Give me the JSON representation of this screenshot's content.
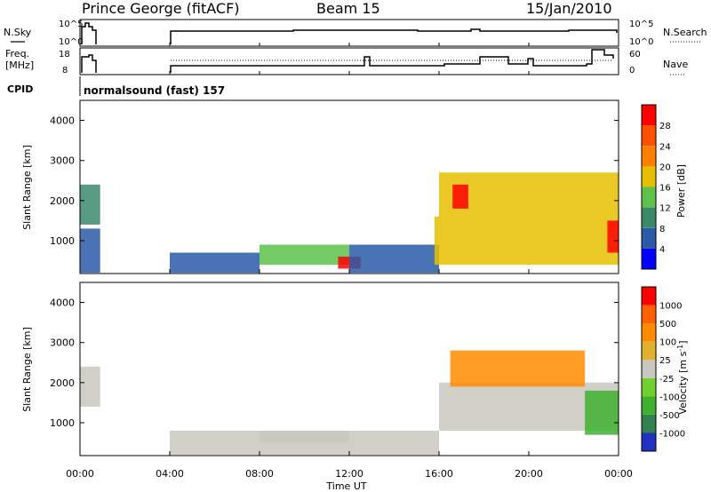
{
  "header": {
    "station": "Prince George (fitACF)",
    "beam": "Beam 15",
    "date": "15/Jan/2010"
  },
  "status_panels": {
    "nsky_label": "N.Sky",
    "nsearch_label": "N.Search",
    "freq_label_1": "Freq.",
    "freq_label_2": "[MHz]",
    "nave_label": "Nave",
    "cpid_label": "CPID",
    "cpid_text": "normalsound (fast) 157",
    "noise_ticks": [
      "10^5",
      "10^0"
    ],
    "freq_ticks": [
      "18",
      "8"
    ],
    "nave_ticks": [
      "60",
      "0"
    ]
  },
  "chart_data": [
    {
      "type": "heatmap",
      "ylabel": "Slant Range [km]",
      "yticks": [
        "4000",
        "3000",
        "2000",
        "1000"
      ],
      "ylim": [
        180,
        4500
      ],
      "colorbar": {
        "label": "Power [dB]",
        "ticks": [
          "28",
          "24",
          "20",
          "16",
          "12",
          "8",
          "4"
        ],
        "colors": [
          "#0000ff",
          "#2a5aa8",
          "#3a8a6a",
          "#5cc24a",
          "#e6c000",
          "#ff8000",
          "#ff5000",
          "#ff0000"
        ]
      },
      "regions": [
        {
          "x": [
            0.0,
            0.9
          ],
          "y": [
            1400,
            2400
          ],
          "level": 0.25
        },
        {
          "x": [
            0.0,
            0.9
          ],
          "y": [
            200,
            1300
          ],
          "level": 0.12
        },
        {
          "x": [
            4.0,
            8.0
          ],
          "y": [
            200,
            700
          ],
          "level": 0.1
        },
        {
          "x": [
            8.0,
            12.0
          ],
          "y": [
            400,
            900
          ],
          "level": 0.45
        },
        {
          "x": [
            11.5,
            12.5
          ],
          "y": [
            300,
            600
          ],
          "level": 0.95
        },
        {
          "x": [
            12.0,
            16.0
          ],
          "y": [
            200,
            900
          ],
          "level": 0.2
        },
        {
          "x": [
            15.8,
            24.0
          ],
          "y": [
            400,
            1600
          ],
          "level": 0.55
        },
        {
          "x": [
            16.0,
            24.0
          ],
          "y": [
            1600,
            2700
          ],
          "level": 0.5
        },
        {
          "x": [
            16.6,
            17.3
          ],
          "y": [
            1800,
            2400
          ],
          "level": 0.95
        },
        {
          "x": [
            23.5,
            24.0
          ],
          "y": [
            700,
            1500
          ],
          "level": 0.95
        }
      ]
    },
    {
      "type": "heatmap",
      "ylabel": "Slant Range [km]",
      "yticks": [
        "4000",
        "3000",
        "2000",
        "1000"
      ],
      "ylim": [
        180,
        4500
      ],
      "colorbar": {
        "label": "Velocity [m s^-1]",
        "ticks": [
          "1000",
          "500",
          "100",
          "25",
          "-25",
          "-100",
          "-500",
          "-1000"
        ],
        "colors": [
          "#2030c0",
          "#308050",
          "#40b030",
          "#70d030",
          "#c8c8c0",
          "#e0b030",
          "#ff8c00",
          "#ff6000",
          "#ff0000"
        ]
      },
      "regions": [
        {
          "x": [
            0.0,
            0.9
          ],
          "y": [
            1400,
            2400
          ],
          "level": 0.45
        },
        {
          "x": [
            4.0,
            16.0
          ],
          "y": [
            200,
            800
          ],
          "level": 0.55
        },
        {
          "x": [
            8.0,
            12.0
          ],
          "y": [
            500,
            800
          ],
          "level": 0.45
        },
        {
          "x": [
            16.0,
            24.0
          ],
          "y": [
            800,
            2000
          ],
          "level": 0.45
        },
        {
          "x": [
            16.5,
            22.5
          ],
          "y": [
            1900,
            2800
          ],
          "level": 0.75
        },
        {
          "x": [
            22.5,
            24.0
          ],
          "y": [
            700,
            1800
          ],
          "level": 0.25
        }
      ]
    }
  ],
  "x_axis": {
    "ticks": [
      "00:00",
      "04:00",
      "08:00",
      "12:00",
      "16:00",
      "20:00",
      "00:00"
    ],
    "label": "Time UT"
  }
}
